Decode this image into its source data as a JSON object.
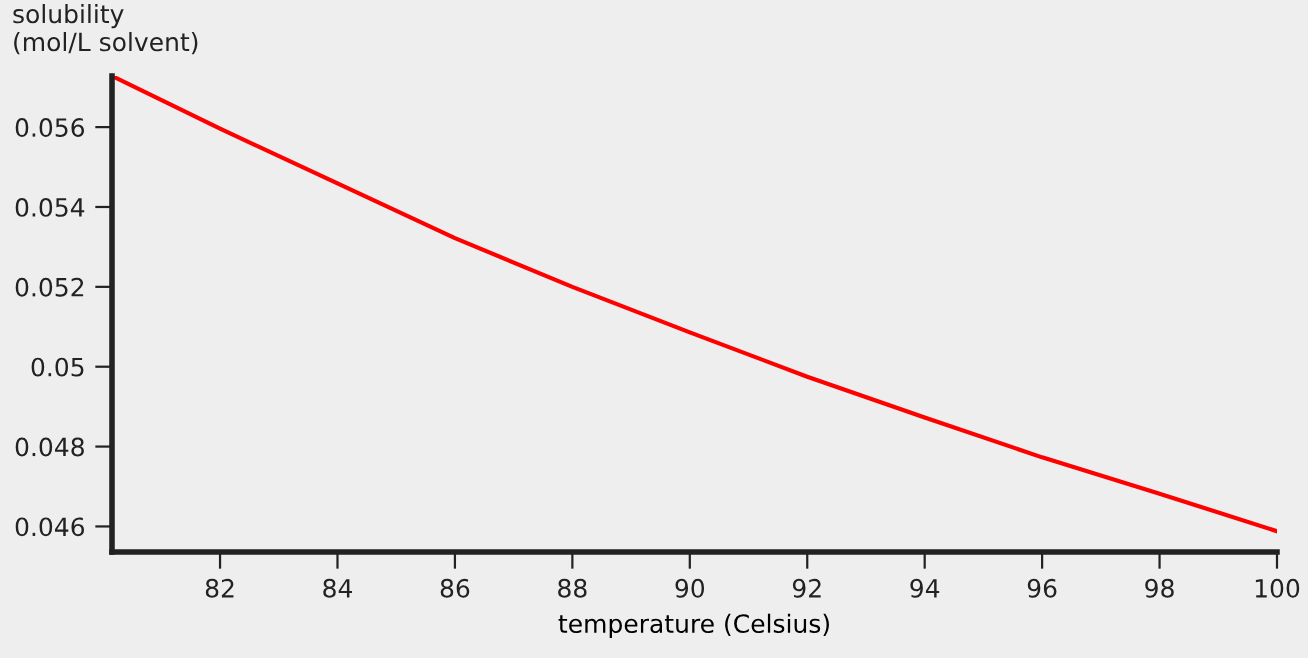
{
  "chart_data": {
    "type": "line",
    "xlabel": "temperature (Celsius)",
    "ylabel": "solubility\n(mol/L solvent)",
    "x": [
      80.16,
      82,
      84,
      86,
      88,
      90,
      92,
      94,
      96,
      98,
      100
    ],
    "series": [
      {
        "color": "#ff0000",
        "values": [
          0.05728,
          0.05596,
          0.05459,
          0.05322,
          0.052,
          0.05086,
          0.04975,
          0.04873,
          0.04773,
          0.04682,
          0.04588
        ]
      }
    ],
    "xlim": [
      80.16,
      100
    ],
    "ylim": [
      0.04536,
      0.05728
    ],
    "xticks": [
      82,
      84,
      86,
      88,
      90,
      92,
      94,
      96,
      98,
      100
    ],
    "yticks": [
      0.046,
      0.048,
      {
        "value": 0.05,
        "label": "0.05"
      },
      0.052,
      0.054,
      0.056
    ],
    "grid": false,
    "legend": false,
    "marker": "none",
    "line_style": "solid"
  }
}
